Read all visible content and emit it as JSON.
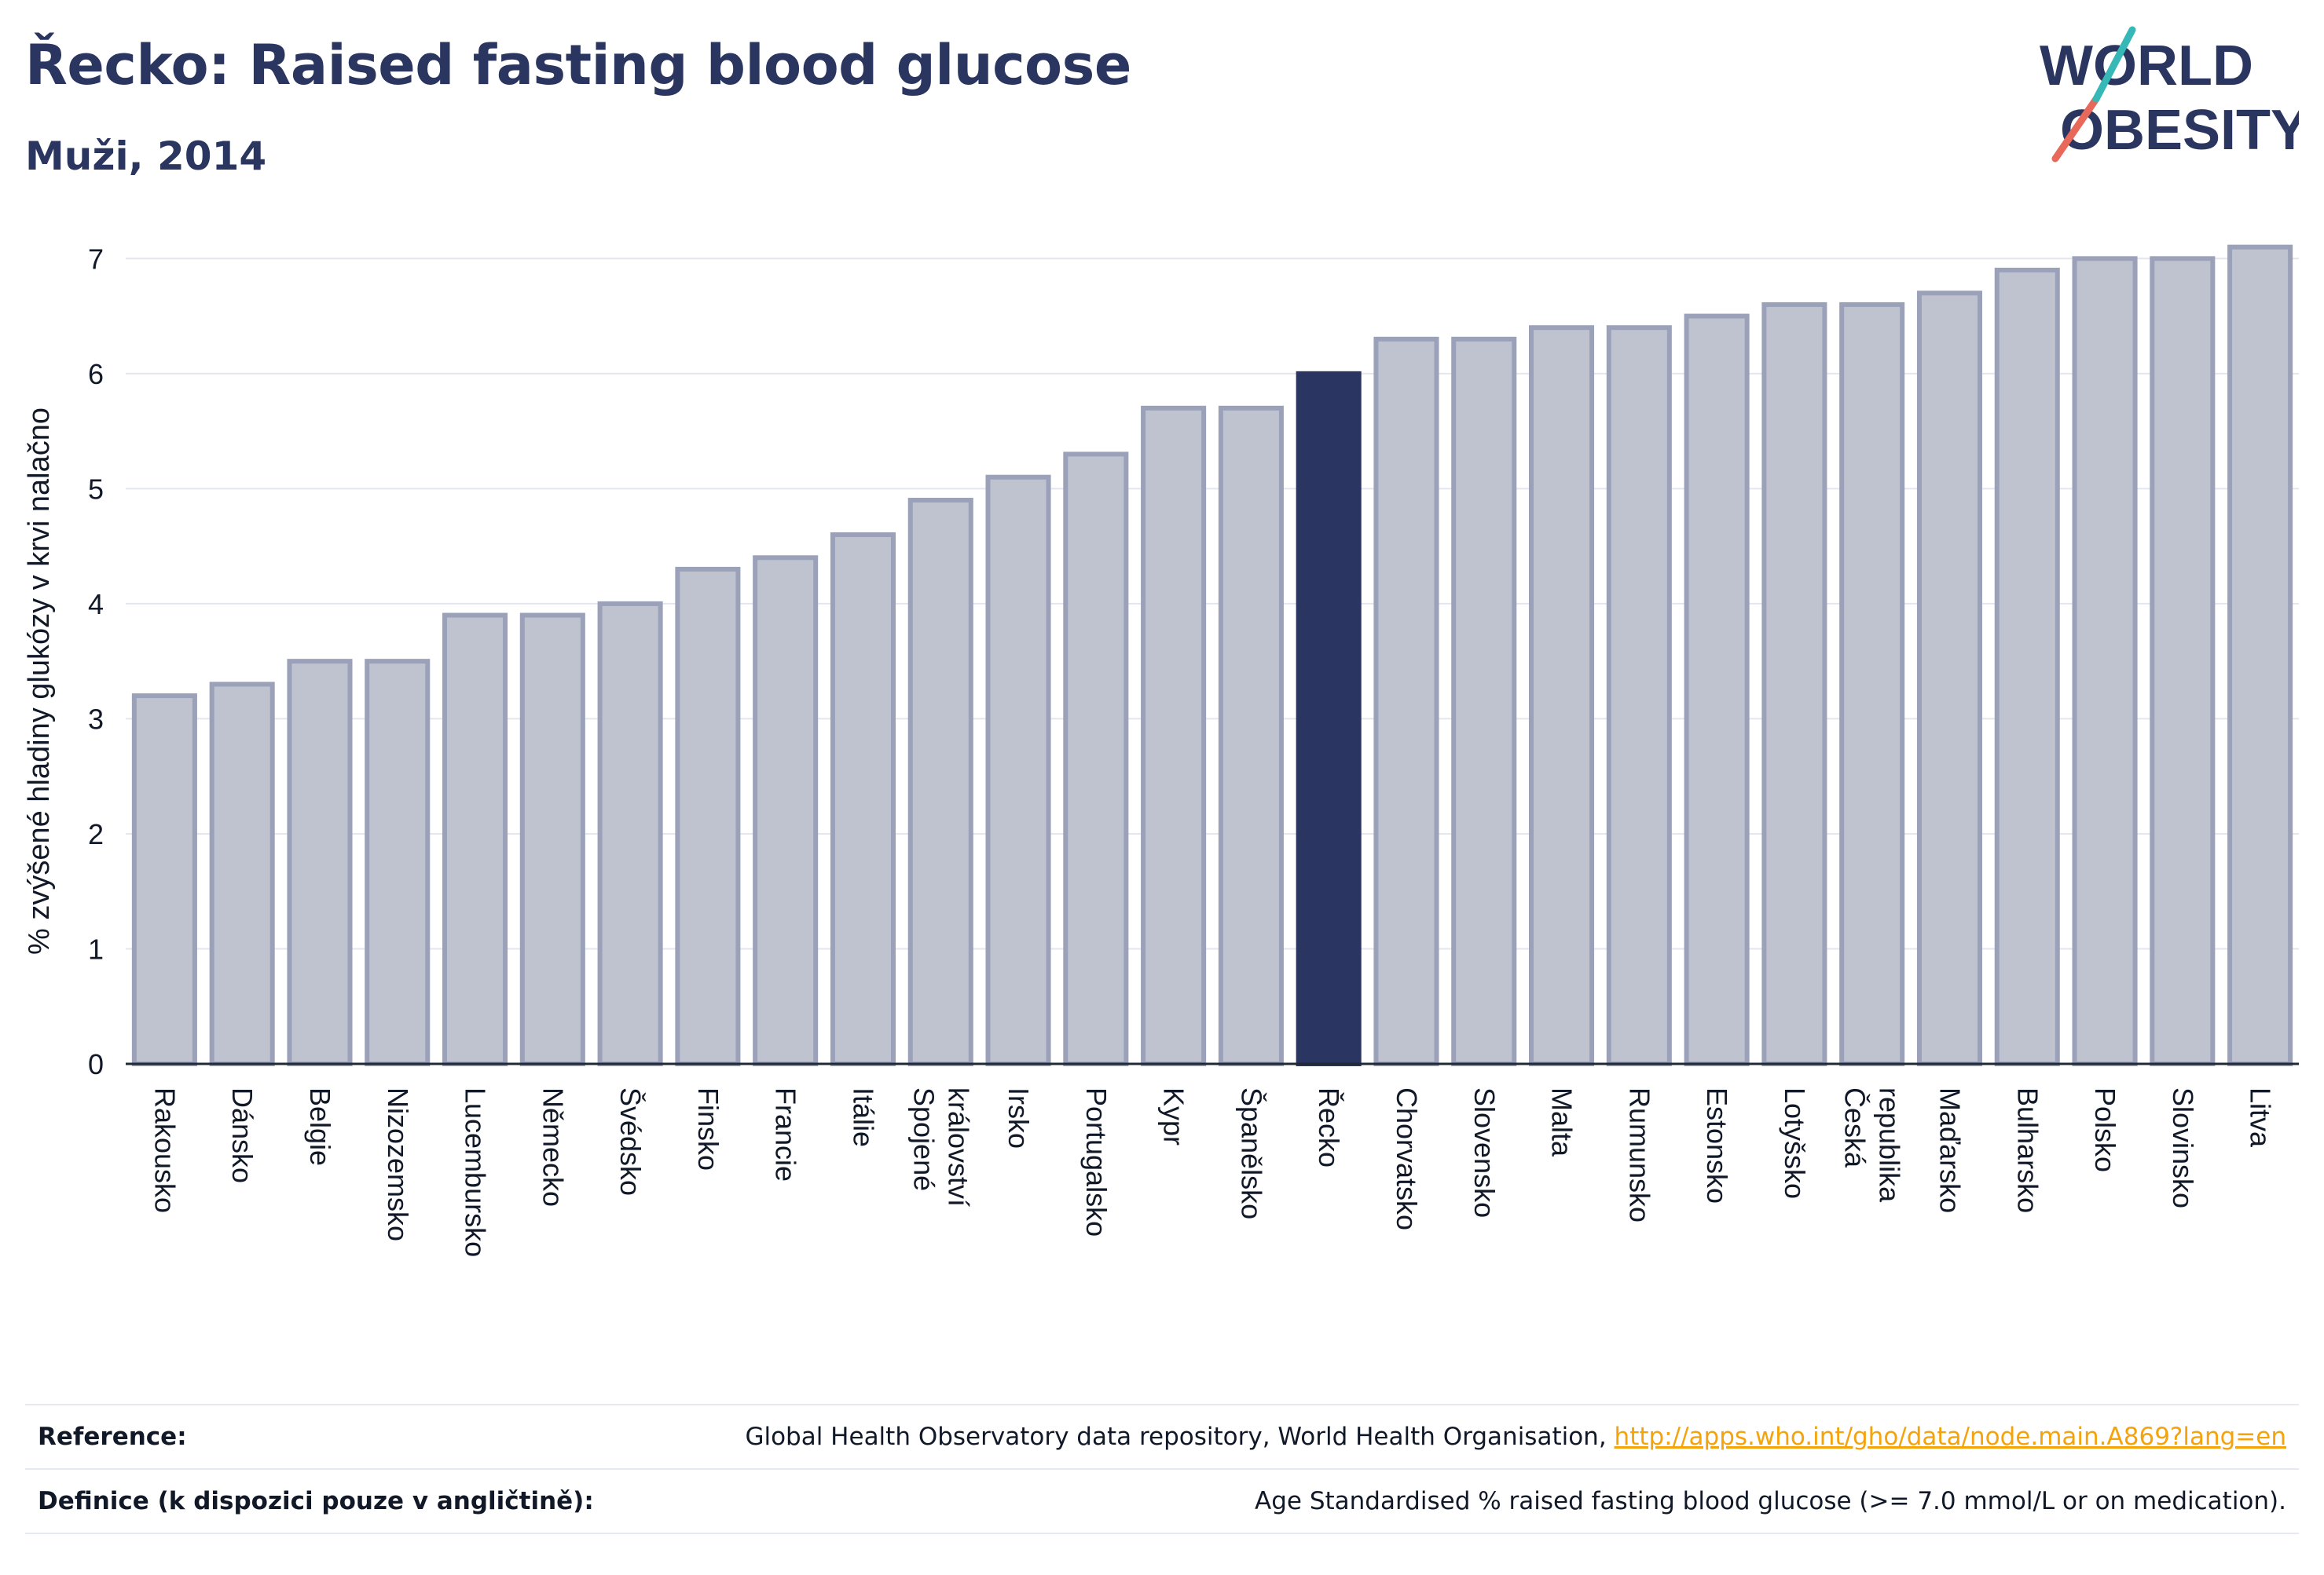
{
  "header": {
    "title": "Řecko: Raised fasting blood glucose",
    "subtitle": "Muži, 2014"
  },
  "logo": {
    "line1": "WORLD",
    "line2": "OBESITY"
  },
  "colors": {
    "highlight": "#2b3561",
    "bar_fill": "#bfc3d0",
    "bar_stroke": "#9aa1b9",
    "text": "#2a3560",
    "link": "#f5a30a"
  },
  "chart_data": {
    "type": "bar",
    "ylabel": "% zvýšené hladiny glukózy v krvi nalačno",
    "ylim": [
      0,
      7.2
    ],
    "yticks": [
      0,
      1,
      2,
      3,
      4,
      5,
      6,
      7
    ],
    "grid": true,
    "highlight": "Řecko",
    "categories": [
      "Rakousko",
      "Dánsko",
      "Belgie",
      "Nizozemsko",
      "Lucembursko",
      "Německo",
      "Švédsko",
      "Finsko",
      "Francie",
      "Itálie",
      "Spojené království",
      "Irsko",
      "Portugalsko",
      "Kypr",
      "Španělsko",
      "Řecko",
      "Chorvatsko",
      "Slovensko",
      "Malta",
      "Rumunsko",
      "Estonsko",
      "Lotyšsko",
      "Česká republika",
      "Maďarsko",
      "Bulharsko",
      "Polsko",
      "Slovinsko",
      "Litva"
    ],
    "values": [
      3.2,
      3.3,
      3.5,
      3.5,
      3.9,
      3.9,
      4.0,
      4.3,
      4.4,
      4.6,
      4.9,
      5.1,
      5.3,
      5.7,
      5.7,
      6.0,
      6.3,
      6.3,
      6.4,
      6.4,
      6.5,
      6.6,
      6.6,
      6.7,
      6.9,
      7.0,
      7.0,
      7.1
    ]
  },
  "reference": {
    "label": "Reference:",
    "text": "Global Health Observatory data repository, World Health Organisation, ",
    "link": "http://apps.who.int/gho/data/node.main.A869?lang=en"
  },
  "definition": {
    "label": "Definice (k dispozici pouze v angličtině):",
    "text": "Age Standardised % raised fasting blood glucose (>= 7.0 mmol/L or on medication)."
  }
}
